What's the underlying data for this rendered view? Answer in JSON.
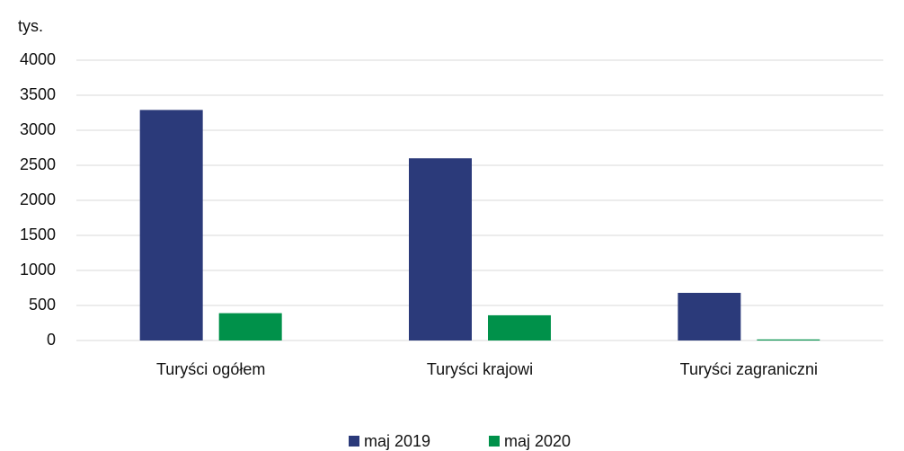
{
  "chart_data": {
    "type": "bar",
    "y_label": "tys.",
    "categories": [
      "Turyści ogółem",
      "Turyści krajowi",
      "Turyści zagraniczni"
    ],
    "series": [
      {
        "name": "maj 2019",
        "color": "#2b3a7a",
        "values": [
          3290,
          2600,
          680
        ]
      },
      {
        "name": "maj 2020",
        "color": "#00914a",
        "values": [
          390,
          360,
          15
        ]
      }
    ],
    "ylim": [
      0,
      4000
    ],
    "yticks": [
      0,
      500,
      1000,
      1500,
      2000,
      2500,
      3000,
      3500,
      4000
    ],
    "grid": true
  }
}
